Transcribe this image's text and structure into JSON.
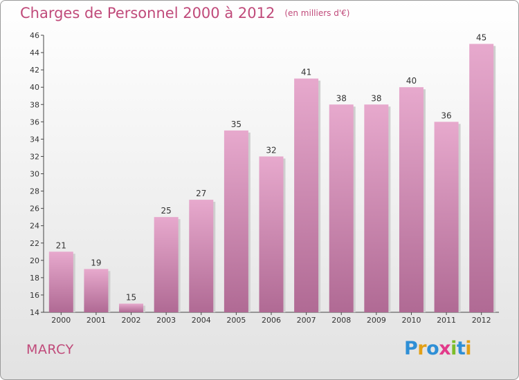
{
  "header": {
    "title": "Charges de Personnel 2000 à 2012",
    "subtitle": "(en milliers d'€)"
  },
  "footer": {
    "town": "MARCY",
    "logo_text": "Proxiti",
    "logo_letters": [
      "P",
      "r",
      "o",
      "x",
      "i",
      "t",
      "i"
    ]
  },
  "colors": {
    "title": "#c04a7a",
    "bar_top": "#e7a9cd",
    "bar_bottom": "#b06a94"
  },
  "chart_data": {
    "type": "bar",
    "title": "Charges de Personnel 2000 à 2012",
    "subtitle": "(en milliers d'€)",
    "categories": [
      "2000",
      "2001",
      "2002",
      "2003",
      "2004",
      "2005",
      "2006",
      "2007",
      "2008",
      "2009",
      "2010",
      "2011",
      "2012"
    ],
    "values": [
      21,
      19,
      15,
      25,
      27,
      35,
      32,
      41,
      38,
      38,
      40,
      36,
      45
    ],
    "ylim": [
      14,
      46
    ],
    "yticks": [
      14,
      16,
      18,
      20,
      22,
      24,
      26,
      28,
      30,
      32,
      34,
      36,
      38,
      40,
      42,
      44,
      46
    ],
    "grid": false,
    "data_labels": true,
    "xlabel": "",
    "ylabel": ""
  }
}
